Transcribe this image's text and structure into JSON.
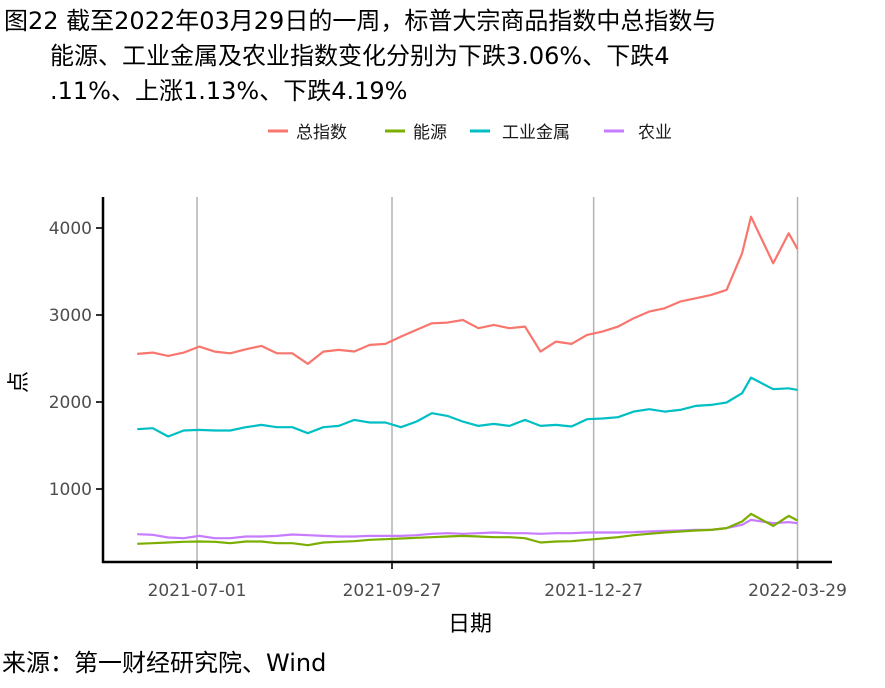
{
  "title": {
    "line1": "图22  截至2022年03月29日的一周，标普大宗商品指数中总指数与",
    "line2": "能源、工业金属及农业指数变化分别为下跌3.06%、下跌4",
    "line3": ".11%、上涨1.13%、下跌4.19%"
  },
  "source": "来源：第一财经研究院、Wind",
  "chart_data": {
    "type": "line",
    "title": "截至2022年03月29日的一周，标普大宗商品指数中总指数与能源、工业金属及农业指数变化分别为下跌3.06%、下跌4.11%、上涨1.13%、下跌4.19%",
    "xlabel": "日期",
    "ylabel": "点",
    "ylim": [
      0,
      4300
    ],
    "yticks": [
      "1000",
      "2000",
      "3000",
      "4000"
    ],
    "xticks": [
      "2021-07-01",
      "2021-09-27",
      "2021-12-27",
      "2022-03-29"
    ],
    "grid": "vertical major gridlines",
    "legend_position": "top",
    "x": [
      "2021-06-04",
      "2021-06-11",
      "2021-06-18",
      "2021-06-25",
      "2021-07-02",
      "2021-07-09",
      "2021-07-16",
      "2021-07-23",
      "2021-07-30",
      "2021-08-06",
      "2021-08-13",
      "2021-08-20",
      "2021-08-27",
      "2021-09-03",
      "2021-09-10",
      "2021-09-17",
      "2021-09-24",
      "2021-10-01",
      "2021-10-08",
      "2021-10-15",
      "2021-10-22",
      "2021-10-29",
      "2021-11-05",
      "2021-11-12",
      "2021-11-19",
      "2021-11-26",
      "2021-12-03",
      "2021-12-10",
      "2021-12-17",
      "2021-12-24",
      "2021-12-31",
      "2022-01-07",
      "2022-01-14",
      "2022-01-21",
      "2022-01-28",
      "2022-02-04",
      "2022-02-11",
      "2022-02-18",
      "2022-02-25",
      "2022-03-04",
      "2022-03-08",
      "2022-03-18",
      "2022-03-25",
      "2022-03-29"
    ],
    "series": [
      {
        "name": "总指数",
        "color": "#F8766D",
        "values": [
          2553,
          2568,
          2530,
          2568,
          2637,
          2579,
          2560,
          2606,
          2645,
          2560,
          2560,
          2438,
          2579,
          2599,
          2580,
          2656,
          2668,
          2752,
          2829,
          2905,
          2913,
          2943,
          2848,
          2886,
          2848,
          2867,
          2579,
          2694,
          2668,
          2771,
          2809,
          2867,
          2962,
          3039,
          3077,
          3154,
          3192,
          3231,
          3288,
          3709,
          4130,
          3594,
          3939,
          3760
        ]
      },
      {
        "name": "能源",
        "color": "#7CAE00",
        "values": [
          370,
          377,
          385,
          393,
          396,
          393,
          377,
          396,
          396,
          377,
          377,
          354,
          385,
          393,
          400,
          416,
          423,
          431,
          439,
          446,
          454,
          461,
          454,
          446,
          446,
          435,
          385,
          396,
          400,
          416,
          431,
          446,
          469,
          485,
          500,
          511,
          523,
          530,
          550,
          626,
          714,
          576,
          691,
          638
        ]
      },
      {
        "name": "工业金属",
        "color": "#00BFC4",
        "values": [
          1687,
          1699,
          1603,
          1672,
          1679,
          1672,
          1672,
          1710,
          1737,
          1710,
          1710,
          1641,
          1710,
          1725,
          1794,
          1764,
          1764,
          1710,
          1775,
          1871,
          1840,
          1775,
          1725,
          1748,
          1725,
          1794,
          1725,
          1737,
          1718,
          1802,
          1810,
          1825,
          1890,
          1917,
          1890,
          1909,
          1955,
          1967,
          1994,
          2101,
          2280,
          2147,
          2158,
          2139
        ]
      },
      {
        "name": "农业",
        "color": "#C77CFF",
        "values": [
          481,
          473,
          442,
          435,
          461,
          435,
          435,
          454,
          454,
          461,
          477,
          469,
          461,
          454,
          454,
          461,
          461,
          461,
          469,
          485,
          492,
          485,
          492,
          500,
          492,
          492,
          485,
          492,
          492,
          500,
          500,
          500,
          504,
          511,
          519,
          523,
          530,
          530,
          550,
          588,
          645,
          607,
          619,
          607
        ]
      }
    ]
  }
}
